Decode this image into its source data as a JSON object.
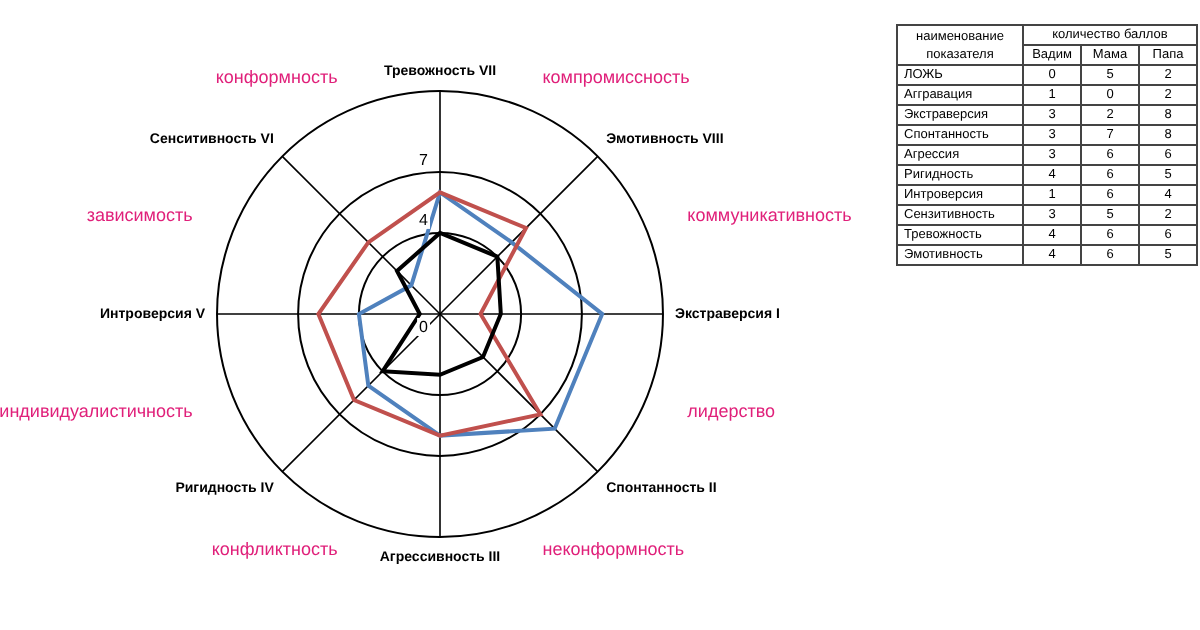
{
  "chart_data": [
    {
      "type": "radar",
      "categories": [
        "Тревожность VII",
        "Эмотивность VIII",
        "Экстраверсия I",
        "Спонтанность II",
        "Агрессивность III",
        "Ригидность IV",
        "Интроверсия V",
        "Сенситивность VI"
      ],
      "series": [
        {
          "color": "#000000",
          "values": [
            4,
            4,
            3,
            3,
            3,
            4,
            1,
            3
          ]
        },
        {
          "color": "#c0504d",
          "values": [
            6,
            6,
            2,
            7,
            6,
            6,
            6,
            5
          ]
        },
        {
          "color": "#4f81bd",
          "values": [
            6,
            5,
            8,
            8,
            6,
            5,
            4,
            2
          ]
        }
      ],
      "ylim": [
        0,
        11
      ],
      "yticks": [
        0,
        4,
        7
      ],
      "grid": true,
      "legend": false,
      "marker": "none",
      "annotations": [
        "компромиссность",
        "коммуникативность",
        "лидерство",
        "неконформность",
        "конфликтность",
        "индивидуалистичность",
        "зависимость",
        "конформность"
      ]
    },
    {
      "type": "other",
      "data_labels": true,
      "title": "количество баллов",
      "xlabel": "наименование показателя",
      "categories": [
        "ЛОЖЬ",
        "Аггравация",
        "Экстраверсия",
        "Спонтанность",
        "Агрессия",
        "Ригидность",
        "Интроверсия",
        "Сензитивность",
        "Тревожность",
        "Эмотивность"
      ],
      "series": [
        {
          "name": "Вадим",
          "values": [
            0,
            1,
            3,
            3,
            3,
            4,
            1,
            3,
            4,
            4
          ]
        },
        {
          "name": "Мама",
          "values": [
            5,
            0,
            2,
            7,
            6,
            6,
            6,
            5,
            6,
            6
          ]
        },
        {
          "name": "Папа",
          "values": [
            2,
            2,
            8,
            8,
            6,
            5,
            4,
            2,
            6,
            5
          ]
        }
      ]
    }
  ]
}
